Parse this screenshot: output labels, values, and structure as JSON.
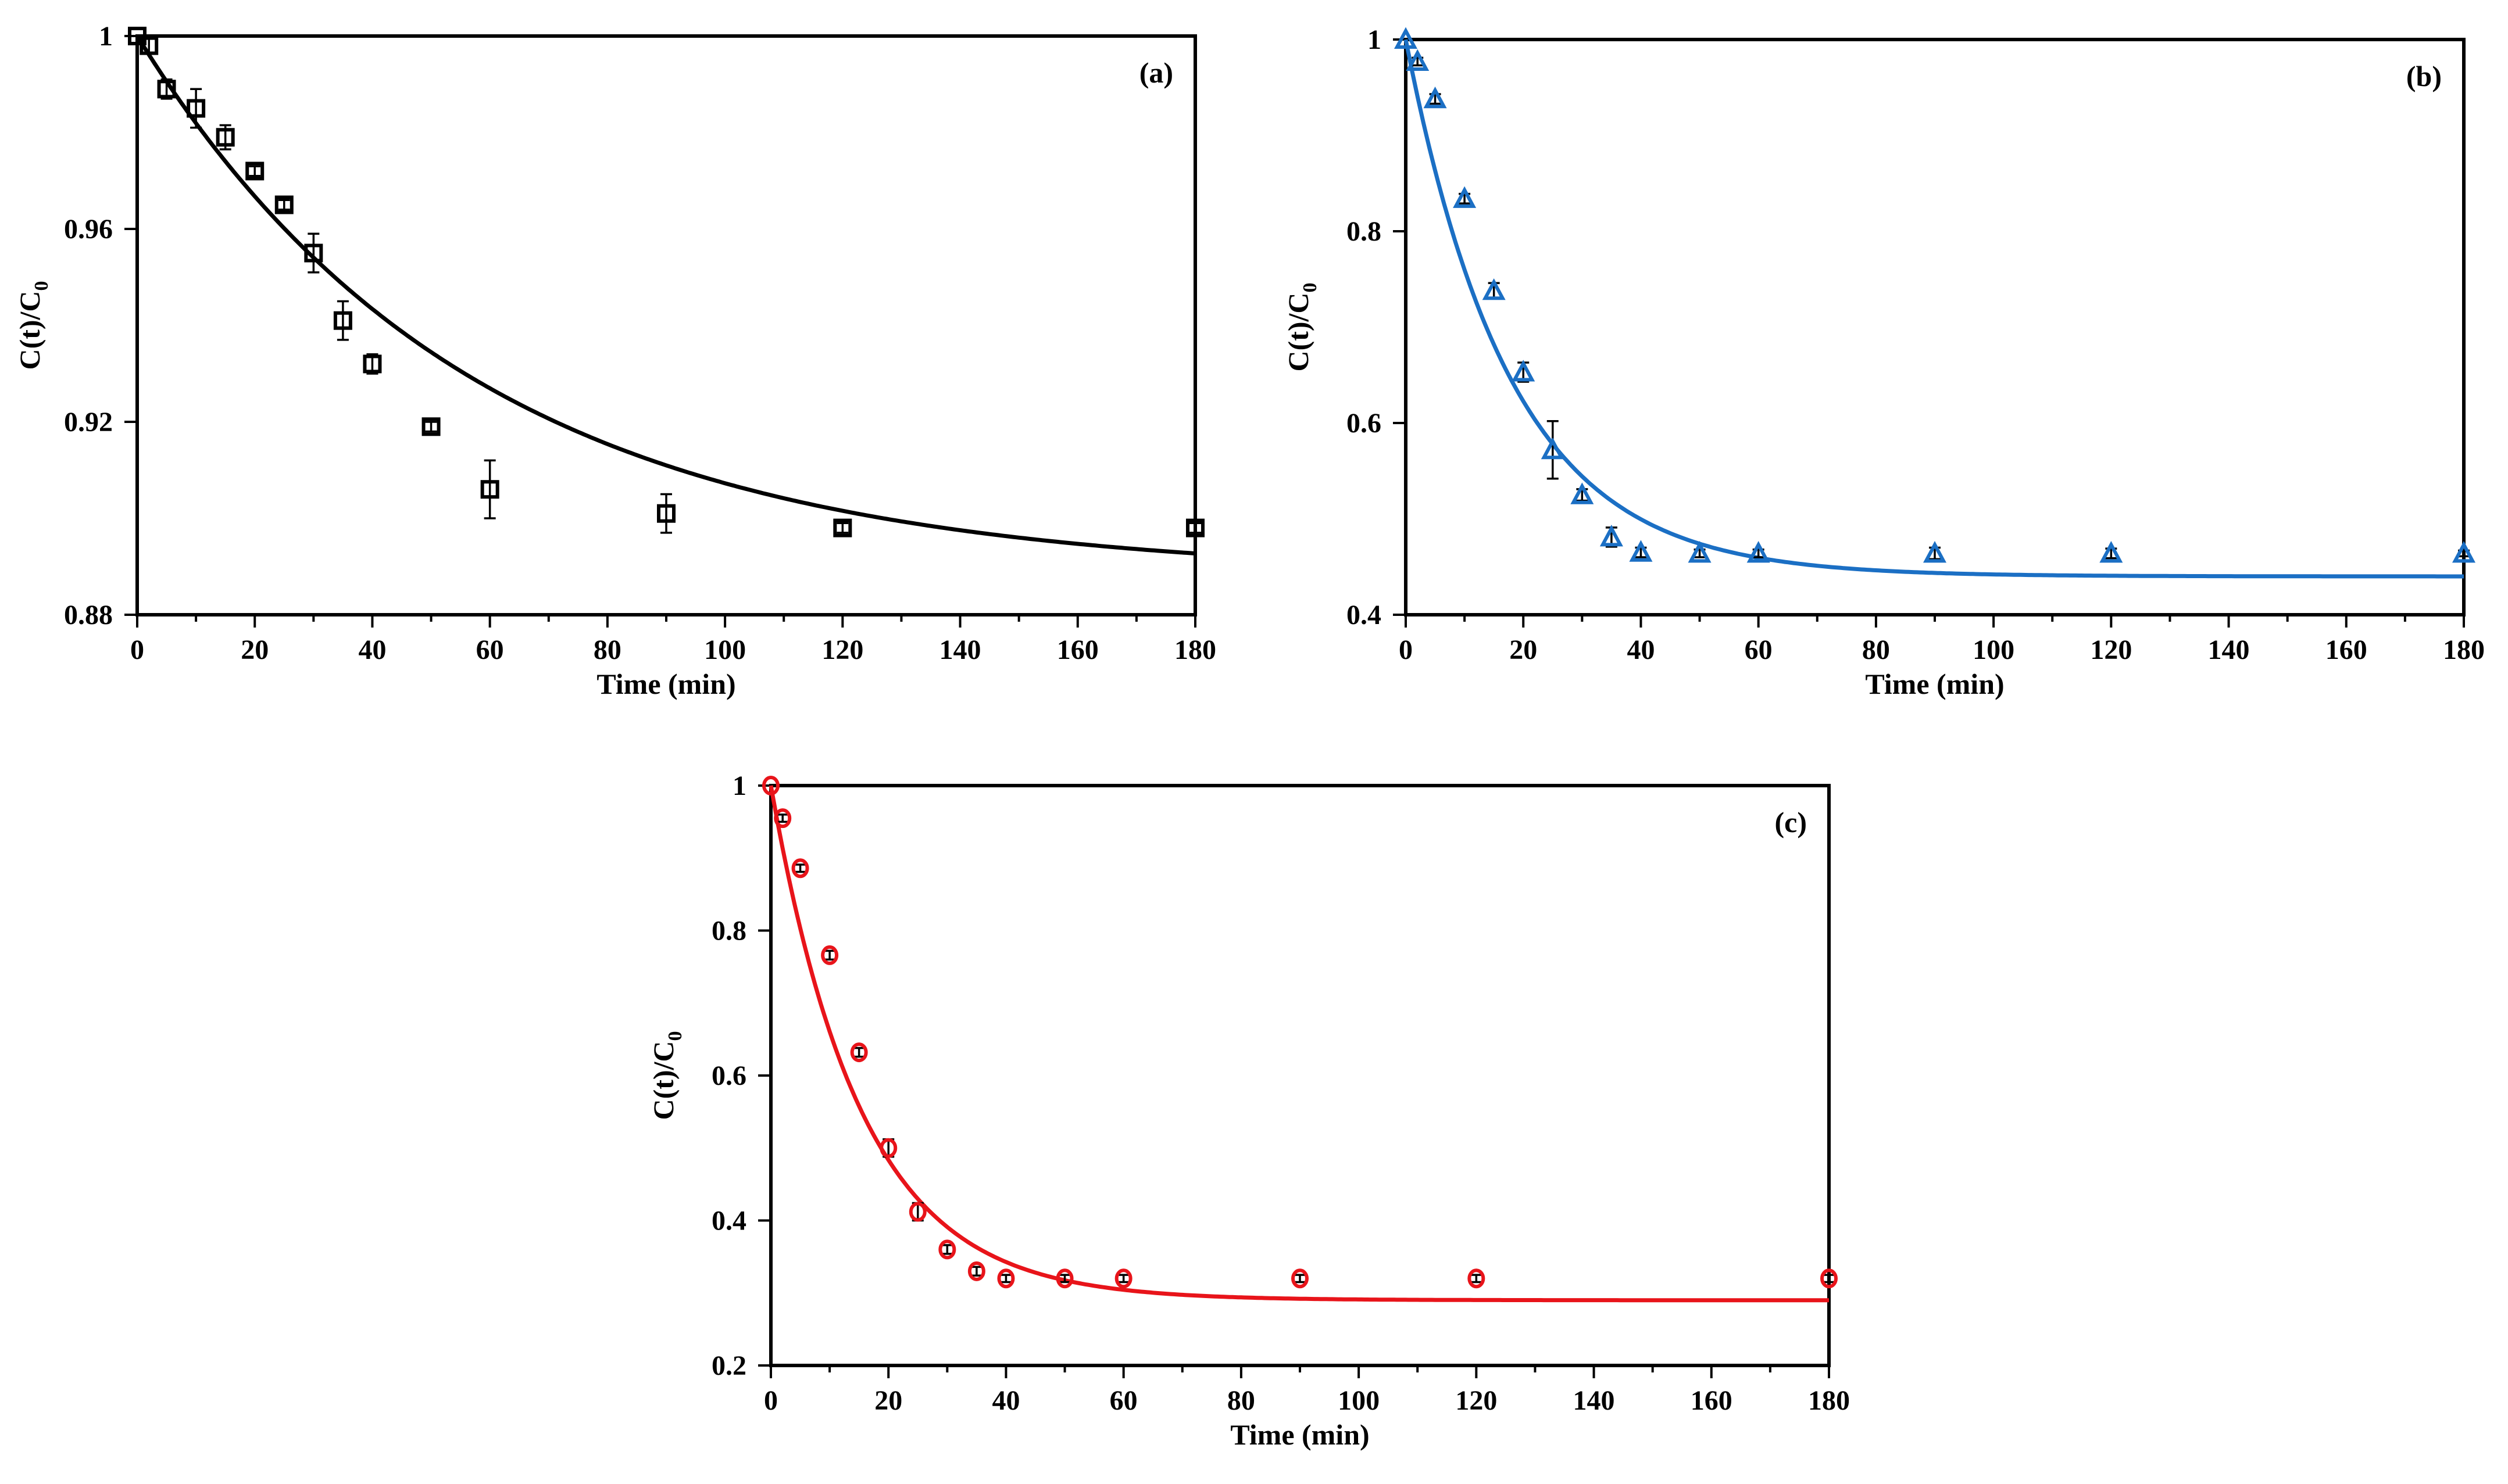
{
  "chart_data": [
    {
      "id": "a",
      "type": "scatter",
      "panel_label": "(a)",
      "xlabel": "Time (min)",
      "ylabel_main": "C(t)/C",
      "ylabel_sub": "0",
      "xlim": [
        0,
        180
      ],
      "ylim": [
        0.88,
        1.0
      ],
      "xticks": [
        0,
        20,
        40,
        60,
        80,
        100,
        120,
        140,
        160,
        180
      ],
      "yticks": [
        0.88,
        0.92,
        0.96,
        1.0
      ],
      "ytick_labels": [
        "0.88",
        "0.92",
        "0.96",
        "1"
      ],
      "color": "#000000",
      "marker": "square",
      "x": [
        0,
        2,
        5,
        10,
        15,
        20,
        25,
        30,
        35,
        40,
        50,
        60,
        90,
        120,
        180
      ],
      "y": [
        1.0,
        0.998,
        0.989,
        0.985,
        0.979,
        0.972,
        0.965,
        0.955,
        0.941,
        0.932,
        0.919,
        0.906,
        0.901,
        0.898,
        0.898
      ],
      "err": [
        0,
        0.0015,
        0.002,
        0.004,
        0.0025,
        0.001,
        0.001,
        0.004,
        0.004,
        0.002,
        0.001,
        0.006,
        0.004,
        0.001,
        0.001
      ],
      "fit": {
        "y_inf": 0.888,
        "amplitude": 0.112,
        "rate": 0.0176
      }
    },
    {
      "id": "b",
      "type": "scatter",
      "panel_label": "(b)",
      "xlabel": "Time (min)",
      "ylabel_main": "C(t)/C",
      "ylabel_sub": "0",
      "xlim": [
        0,
        180
      ],
      "ylim": [
        0.4,
        1.0
      ],
      "xticks": [
        0,
        20,
        40,
        60,
        80,
        100,
        120,
        140,
        160,
        180
      ],
      "yticks": [
        0.4,
        0.6,
        0.8,
        1.0
      ],
      "ytick_labels": [
        "0.4",
        "0.6",
        "0.8",
        "1"
      ],
      "color": "#1B6FC4",
      "marker": "triangle",
      "x": [
        0,
        2,
        5,
        10,
        15,
        20,
        25,
        30,
        35,
        40,
        50,
        60,
        90,
        120,
        180
      ],
      "y": [
        1.0,
        0.977,
        0.938,
        0.834,
        0.738,
        0.653,
        0.572,
        0.525,
        0.481,
        0.465,
        0.464,
        0.464,
        0.464,
        0.464,
        0.464
      ],
      "err": [
        0,
        0.004,
        0.005,
        0.005,
        0.008,
        0.01,
        0.03,
        0.006,
        0.01,
        0.005,
        0.004,
        0.004,
        0.006,
        0.005,
        0.003
      ],
      "fit": {
        "y_inf": 0.44,
        "amplitude": 0.56,
        "rate": 0.056
      }
    },
    {
      "id": "c",
      "type": "scatter",
      "panel_label": "(c)",
      "xlabel": "Time (min)",
      "ylabel_main": "C(t)/C",
      "ylabel_sub": "0",
      "xlim": [
        0,
        180
      ],
      "ylim": [
        0.2,
        1.0
      ],
      "xticks": [
        0,
        20,
        40,
        60,
        80,
        100,
        120,
        140,
        160,
        180
      ],
      "yticks": [
        0.2,
        0.4,
        0.6,
        0.8,
        1.0
      ],
      "ytick_labels": [
        "0.2",
        "0.4",
        "0.6",
        "0.8",
        "1"
      ],
      "color": "#E8141A",
      "marker": "circle",
      "x": [
        0,
        2,
        5,
        10,
        15,
        20,
        25,
        30,
        35,
        40,
        50,
        60,
        90,
        120,
        180
      ],
      "y": [
        1.0,
        0.955,
        0.886,
        0.766,
        0.632,
        0.5,
        0.412,
        0.36,
        0.33,
        0.32,
        0.32,
        0.32,
        0.32,
        0.32,
        0.32
      ],
      "err": [
        0,
        0.005,
        0.005,
        0.006,
        0.006,
        0.012,
        0.012,
        0.006,
        0.006,
        0.005,
        0.005,
        0.005,
        0.005,
        0.005,
        0.005
      ],
      "fit": {
        "y_inf": 0.29,
        "amplitude": 0.71,
        "rate": 0.065
      }
    }
  ]
}
